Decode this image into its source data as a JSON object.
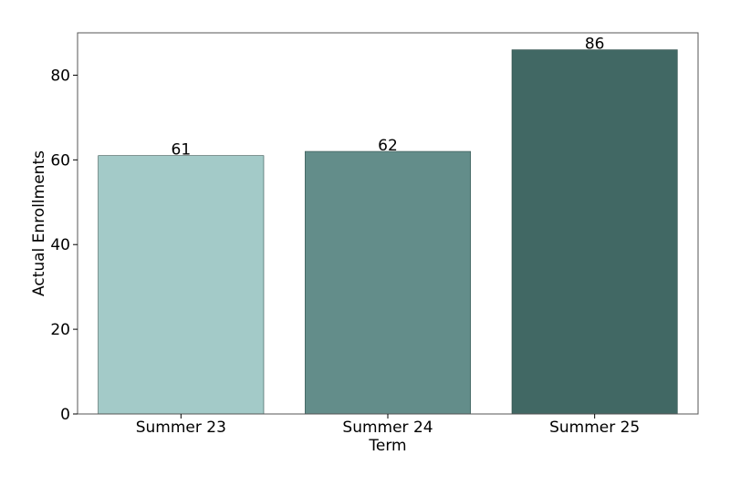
{
  "chart_data": {
    "type": "bar",
    "categories": [
      "Summer 23",
      "Summer 24",
      "Summer 25"
    ],
    "values": [
      61,
      62,
      86
    ],
    "data_labels": [
      "61",
      "62",
      "86"
    ],
    "xlabel": "Term",
    "ylabel": "Actual Enrollments",
    "ylim": [
      0,
      90
    ],
    "yticks": [
      0,
      20,
      40,
      60,
      80
    ],
    "ytick_labels": [
      "0",
      "20",
      "40",
      "60",
      "80"
    ],
    "grid": false,
    "bar_colors": [
      "#a3cac8",
      "#638d8a",
      "#416864"
    ],
    "bar_edge_color": "#2f4f4b",
    "axis_color": "#555555"
  }
}
